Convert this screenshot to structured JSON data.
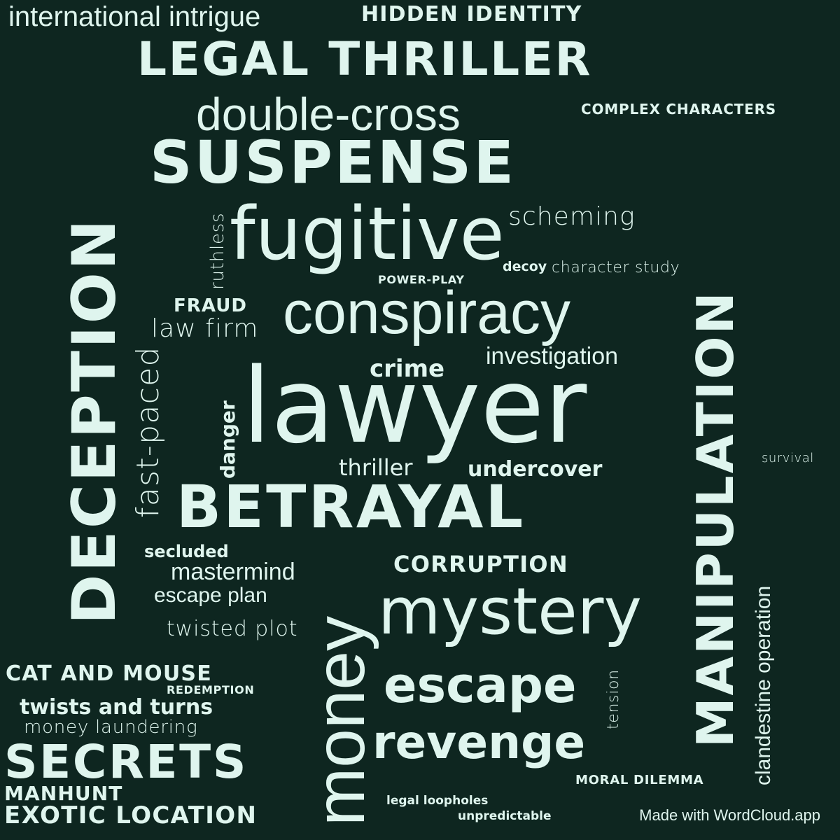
{
  "colors": {
    "background": "#0e2620",
    "text": "#dff5ee"
  },
  "words": [
    "international intrigue",
    "hidden identity",
    "legal thriller",
    "double-cross",
    "complex characters",
    "suspense",
    "deception",
    "manipulation",
    "fugitive",
    "scheming",
    "ruthless",
    "decoy",
    "character study",
    "power-play",
    "fraud",
    "law firm",
    "conspiracy",
    "investigation",
    "crime",
    "fast-paced",
    "danger",
    "lawyer",
    "survival",
    "thriller",
    "undercover",
    "betrayal",
    "secluded",
    "mastermind",
    "corruption",
    "escape plan",
    "money",
    "mystery",
    "twisted plot",
    "clandestine operation",
    "cat and mouse",
    "redemption",
    "twists and turns",
    "escape",
    "tension",
    "money laundering",
    "revenge",
    "secrets",
    "manhunt",
    "moral dilemma",
    "legal loopholes",
    "exotic location",
    "unpredictable"
  ],
  "footer": {
    "credit": "Made with WordCloud.app"
  }
}
